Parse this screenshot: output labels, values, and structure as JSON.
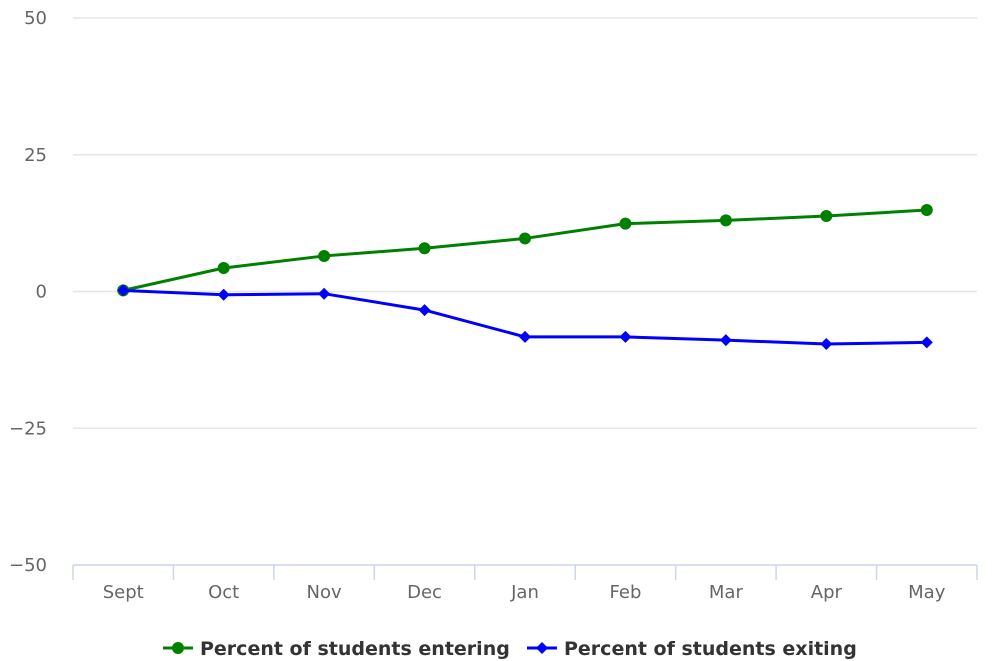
{
  "chart_data": {
    "type": "line",
    "title": "",
    "xlabel": "",
    "ylabel": "",
    "categories": [
      "Sept",
      "Oct",
      "Nov",
      "Dec",
      "Jan",
      "Feb",
      "Mar",
      "Apr",
      "May"
    ],
    "ylim": [
      -50,
      50
    ],
    "yticks": [
      50,
      25,
      0,
      -25,
      -50
    ],
    "ytick_labels": [
      "50",
      "25",
      "0",
      "−25",
      "−50"
    ],
    "grid": true,
    "legend_position": "bottom",
    "series": [
      {
        "name": "Percent of students entering",
        "color": "#008000",
        "marker": "circle",
        "values": [
          0.2,
          4.3,
          6.5,
          7.9,
          9.7,
          12.4,
          13.0,
          13.8,
          14.9
        ]
      },
      {
        "name": "Percent of students exiting",
        "color": "#0000ff",
        "marker": "diamond",
        "values": [
          0.2,
          -0.6,
          -0.4,
          -3.4,
          -8.3,
          -8.3,
          -8.9,
          -9.6,
          -9.3
        ]
      }
    ]
  }
}
